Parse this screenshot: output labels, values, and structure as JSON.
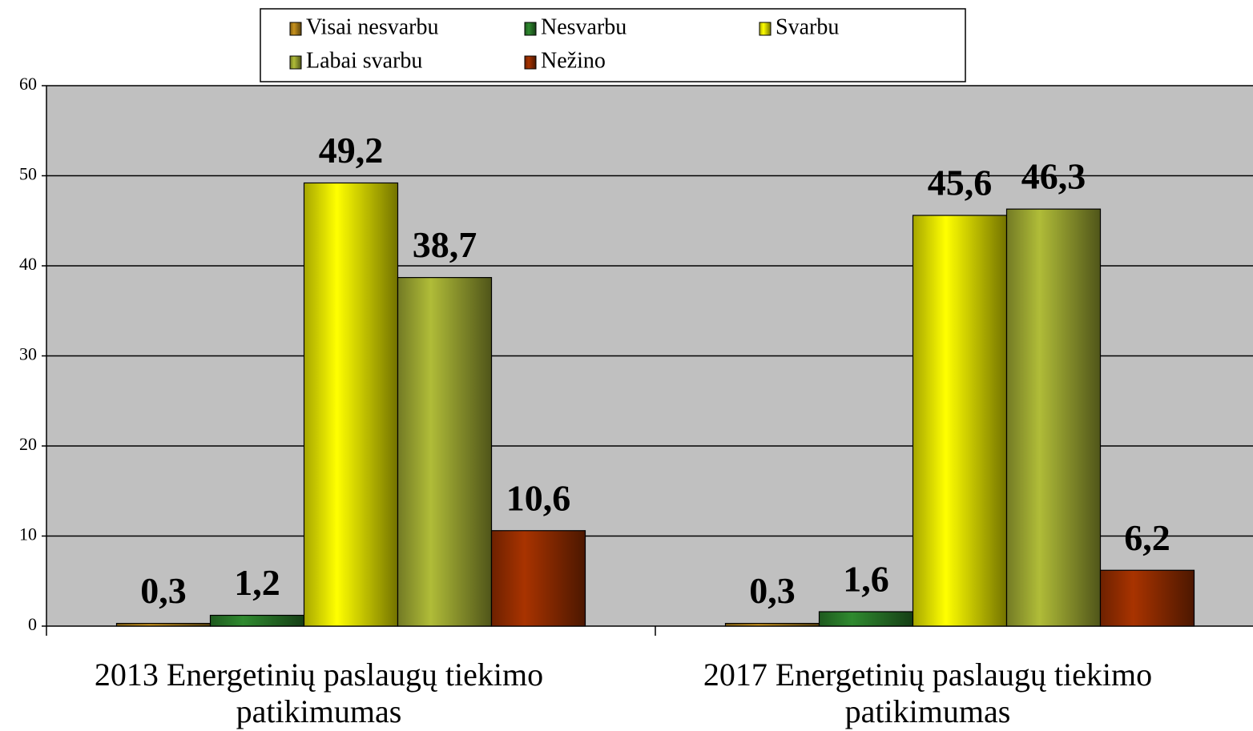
{
  "chart_data": {
    "type": "bar",
    "categories": [
      "2013 Energetinių paslaugų tiekimo patikimumas",
      "2017 Energetinių paslaugų tiekimo patikimumas"
    ],
    "series": [
      {
        "name": "Visai nesvarbu",
        "color": "#c8921c",
        "values": [
          0.3,
          0.3
        ],
        "value_labels": [
          "0,3",
          "0,3"
        ]
      },
      {
        "name": "Nesvarbu",
        "color": "#2f8a2f",
        "values": [
          1.2,
          1.6
        ],
        "value_labels": [
          "1,2",
          "1,6"
        ]
      },
      {
        "name": "Svarbu",
        "color": "#ffff00",
        "values": [
          49.2,
          45.6
        ],
        "value_labels": [
          "49,2",
          "45,6"
        ]
      },
      {
        "name": "Labai svarbu",
        "color": "#b0bc38",
        "values": [
          38.7,
          46.3
        ],
        "value_labels": [
          "38,7",
          "46,3"
        ]
      },
      {
        "name": "Nežino",
        "color": "#a83300",
        "values": [
          10.6,
          6.2
        ],
        "value_labels": [
          "10,6",
          "6,2"
        ]
      }
    ],
    "ylim": [
      0,
      60
    ],
    "yticks": [
      0,
      10,
      20,
      30,
      40,
      50,
      60
    ],
    "grid": true,
    "legend": "top"
  }
}
